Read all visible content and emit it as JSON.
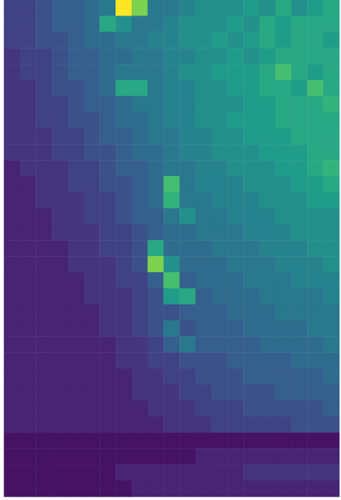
{
  "chart_data": {
    "type": "heatmap",
    "tick_labels": false,
    "color": "viridis",
    "color_range": [
      0,
      10
    ],
    "cells": [
      [
        2,
        2,
        2.5,
        3,
        3,
        3.5,
        4,
        10,
        8,
        4,
        4,
        4.5,
        5,
        5,
        5,
        5.5,
        5,
        6,
        5,
        5.5,
        6
      ],
      [
        2,
        2,
        2.5,
        3,
        3,
        3.5,
        6,
        5,
        4,
        4,
        4.5,
        5,
        5,
        5,
        5.5,
        5,
        6,
        5.5,
        6,
        6,
        6
      ],
      [
        2,
        2,
        2.5,
        2.5,
        3,
        3.5,
        3.5,
        4,
        4,
        4.5,
        4.5,
        5,
        5,
        5.5,
        5,
        5.5,
        6,
        5.5,
        6,
        6,
        5.5
      ],
      [
        1.5,
        2,
        2,
        2.5,
        3,
        3,
        3.5,
        3.5,
        4,
        4,
        4.5,
        4.5,
        5,
        5,
        5.5,
        5,
        5.5,
        6,
        6,
        6,
        6
      ],
      [
        1.5,
        2,
        2,
        2.5,
        3,
        3,
        3.5,
        4,
        4,
        4,
        4.5,
        5,
        5,
        5.5,
        5.5,
        5.5,
        6,
        7,
        6,
        5.5,
        6
      ],
      [
        1.5,
        1.5,
        2,
        2.5,
        2.5,
        3,
        3.5,
        6,
        6,
        4,
        4.5,
        4.5,
        5,
        5,
        5.5,
        5.5,
        6,
        6,
        5.5,
        7,
        6
      ],
      [
        1.5,
        1.5,
        2,
        2,
        2.5,
        3,
        3,
        3.5,
        4,
        4,
        4.5,
        4.5,
        5,
        5,
        5,
        5.5,
        5.5,
        6,
        6,
        6,
        6.5
      ],
      [
        1.5,
        1.5,
        2,
        2,
        2.5,
        2.5,
        3,
        3.5,
        3.5,
        4,
        4.5,
        4.5,
        5,
        5,
        5.5,
        5.5,
        5.5,
        6,
        6,
        6,
        6
      ],
      [
        1.5,
        1.5,
        1.5,
        2,
        2,
        2.5,
        3,
        3,
        3.5,
        4,
        4,
        4.5,
        4.5,
        5,
        5,
        5.5,
        5.5,
        5.5,
        6,
        6,
        6
      ],
      [
        1.5,
        1.5,
        1.5,
        2,
        2,
        2.5,
        2.5,
        3,
        3.5,
        3.5,
        4,
        4.5,
        4.5,
        5,
        5,
        5,
        5.5,
        5.5,
        5.5,
        6,
        6
      ],
      [
        1,
        1.5,
        1.5,
        1.5,
        2,
        2,
        2.5,
        3,
        3,
        3.5,
        4,
        4,
        4.5,
        4.5,
        5,
        5,
        5,
        5.5,
        5.5,
        6,
        6.5
      ],
      [
        1,
        1,
        1.5,
        1.5,
        2,
        2,
        2.5,
        2.5,
        3,
        3.5,
        7,
        4,
        4.5,
        4.5,
        4.5,
        5,
        5,
        5,
        5.5,
        5.5,
        6
      ],
      [
        1,
        1,
        1.5,
        1.5,
        1.5,
        2,
        2,
        2.5,
        3,
        3.5,
        6.5,
        4,
        4,
        4.5,
        4.5,
        4.5,
        5,
        5,
        5,
        5.5,
        5.5
      ],
      [
        1,
        1,
        1,
        1.5,
        1.5,
        2,
        2,
        2.5,
        3,
        3,
        4,
        5,
        4,
        4,
        4.5,
        4.5,
        4.5,
        5,
        5,
        5,
        5
      ],
      [
        1,
        1,
        1,
        1.5,
        1.5,
        1.5,
        2,
        2,
        2.5,
        3,
        3.5,
        3.5,
        4,
        4,
        4,
        4.5,
        4.5,
        4.5,
        5,
        5,
        5
      ],
      [
        1,
        1,
        1,
        1,
        1.5,
        1.5,
        2,
        2,
        2.5,
        6,
        3.5,
        3.5,
        3.5,
        4,
        4,
        4,
        4.5,
        4.5,
        4.5,
        5,
        5
      ],
      [
        1,
        1,
        1,
        1,
        1.5,
        1.5,
        1.5,
        2,
        2.5,
        8,
        5,
        3.5,
        3.5,
        3.5,
        4,
        4,
        4,
        4.5,
        4.5,
        4.5,
        5
      ],
      [
        1,
        1,
        1,
        1,
        1,
        1.5,
        1.5,
        2,
        2,
        3,
        7,
        3,
        3.5,
        3.5,
        3.5,
        4,
        4,
        4,
        4.5,
        4.5,
        4.5
      ],
      [
        1,
        1,
        1,
        1,
        1,
        1.5,
        1.5,
        1.5,
        2,
        2.5,
        5.5,
        6,
        3,
        3.5,
        3.5,
        3.5,
        4,
        4,
        4,
        4,
        4.5
      ],
      [
        1,
        1,
        1,
        1,
        1,
        1,
        1.5,
        1.5,
        2,
        2.5,
        2.5,
        3,
        3,
        3,
        3.5,
        3.5,
        3.5,
        4,
        4,
        4,
        4
      ],
      [
        1,
        1,
        1,
        1,
        1,
        1,
        1.5,
        1.5,
        2,
        2.5,
        4,
        2.5,
        3,
        3,
        3,
        3.5,
        3.5,
        3.5,
        3.5,
        4,
        4
      ],
      [
        1,
        1,
        1,
        1,
        1,
        1,
        1,
        1.5,
        1.5,
        2,
        3,
        4,
        3,
        3,
        3,
        3,
        3.5,
        3.5,
        3.5,
        3.5,
        4
      ],
      [
        1,
        1,
        1,
        1,
        1,
        1,
        1,
        1.5,
        1.5,
        2,
        2,
        2.5,
        2.5,
        2.5,
        3,
        3,
        3,
        3,
        3.5,
        3.5,
        3.5
      ],
      [
        1,
        1,
        1,
        1,
        1,
        1,
        1,
        1,
        1.5,
        1.5,
        2,
        2,
        2.5,
        2.5,
        2.5,
        3,
        3,
        3,
        3,
        3,
        3.5
      ],
      [
        1,
        1,
        1,
        1,
        1,
        1,
        1,
        1,
        1.5,
        1.5,
        1.5,
        2,
        2,
        2.5,
        2.5,
        2.5,
        2.5,
        3,
        3,
        3,
        3
      ],
      [
        1,
        1,
        1,
        1,
        1,
        1,
        1,
        1,
        1,
        1.5,
        1.5,
        1.5,
        2,
        2,
        2,
        2.5,
        2.5,
        2.5,
        2.5,
        2.5,
        3
      ],
      [
        1,
        1,
        1,
        1,
        1,
        1,
        1,
        1,
        1,
        1,
        1.5,
        1.5,
        1.5,
        2,
        2,
        2,
        2,
        2,
        2.5,
        2.5,
        2.5
      ],
      [
        0.5,
        0.5,
        0.5,
        0.5,
        0.5,
        0.5,
        0.5,
        0.5,
        0.5,
        0.5,
        0.5,
        0.5,
        0.5,
        0.5,
        0.5,
        0.5,
        0.5,
        0.5,
        0.5,
        0.5,
        0.5
      ],
      [
        0.5,
        0.5,
        0.5,
        0.5,
        0.5,
        0.5,
        0.5,
        0.5,
        0.5,
        0.5,
        0.5,
        0.5,
        1,
        1,
        1,
        1,
        1,
        1,
        1,
        1,
        1
      ],
      [
        0.5,
        0.5,
        0.5,
        0.5,
        0.5,
        0.5,
        0.5,
        1,
        1,
        1,
        1,
        1,
        1,
        1,
        1,
        1.5,
        1.5,
        1.5,
        1.5,
        1.5,
        1.5
      ],
      [
        0.5,
        0.5,
        0.5,
        0.5,
        0.5,
        0.5,
        0.5,
        0.5,
        1,
        1,
        1,
        1,
        1,
        1,
        1,
        1,
        1,
        1,
        1,
        1,
        1
      ]
    ]
  }
}
